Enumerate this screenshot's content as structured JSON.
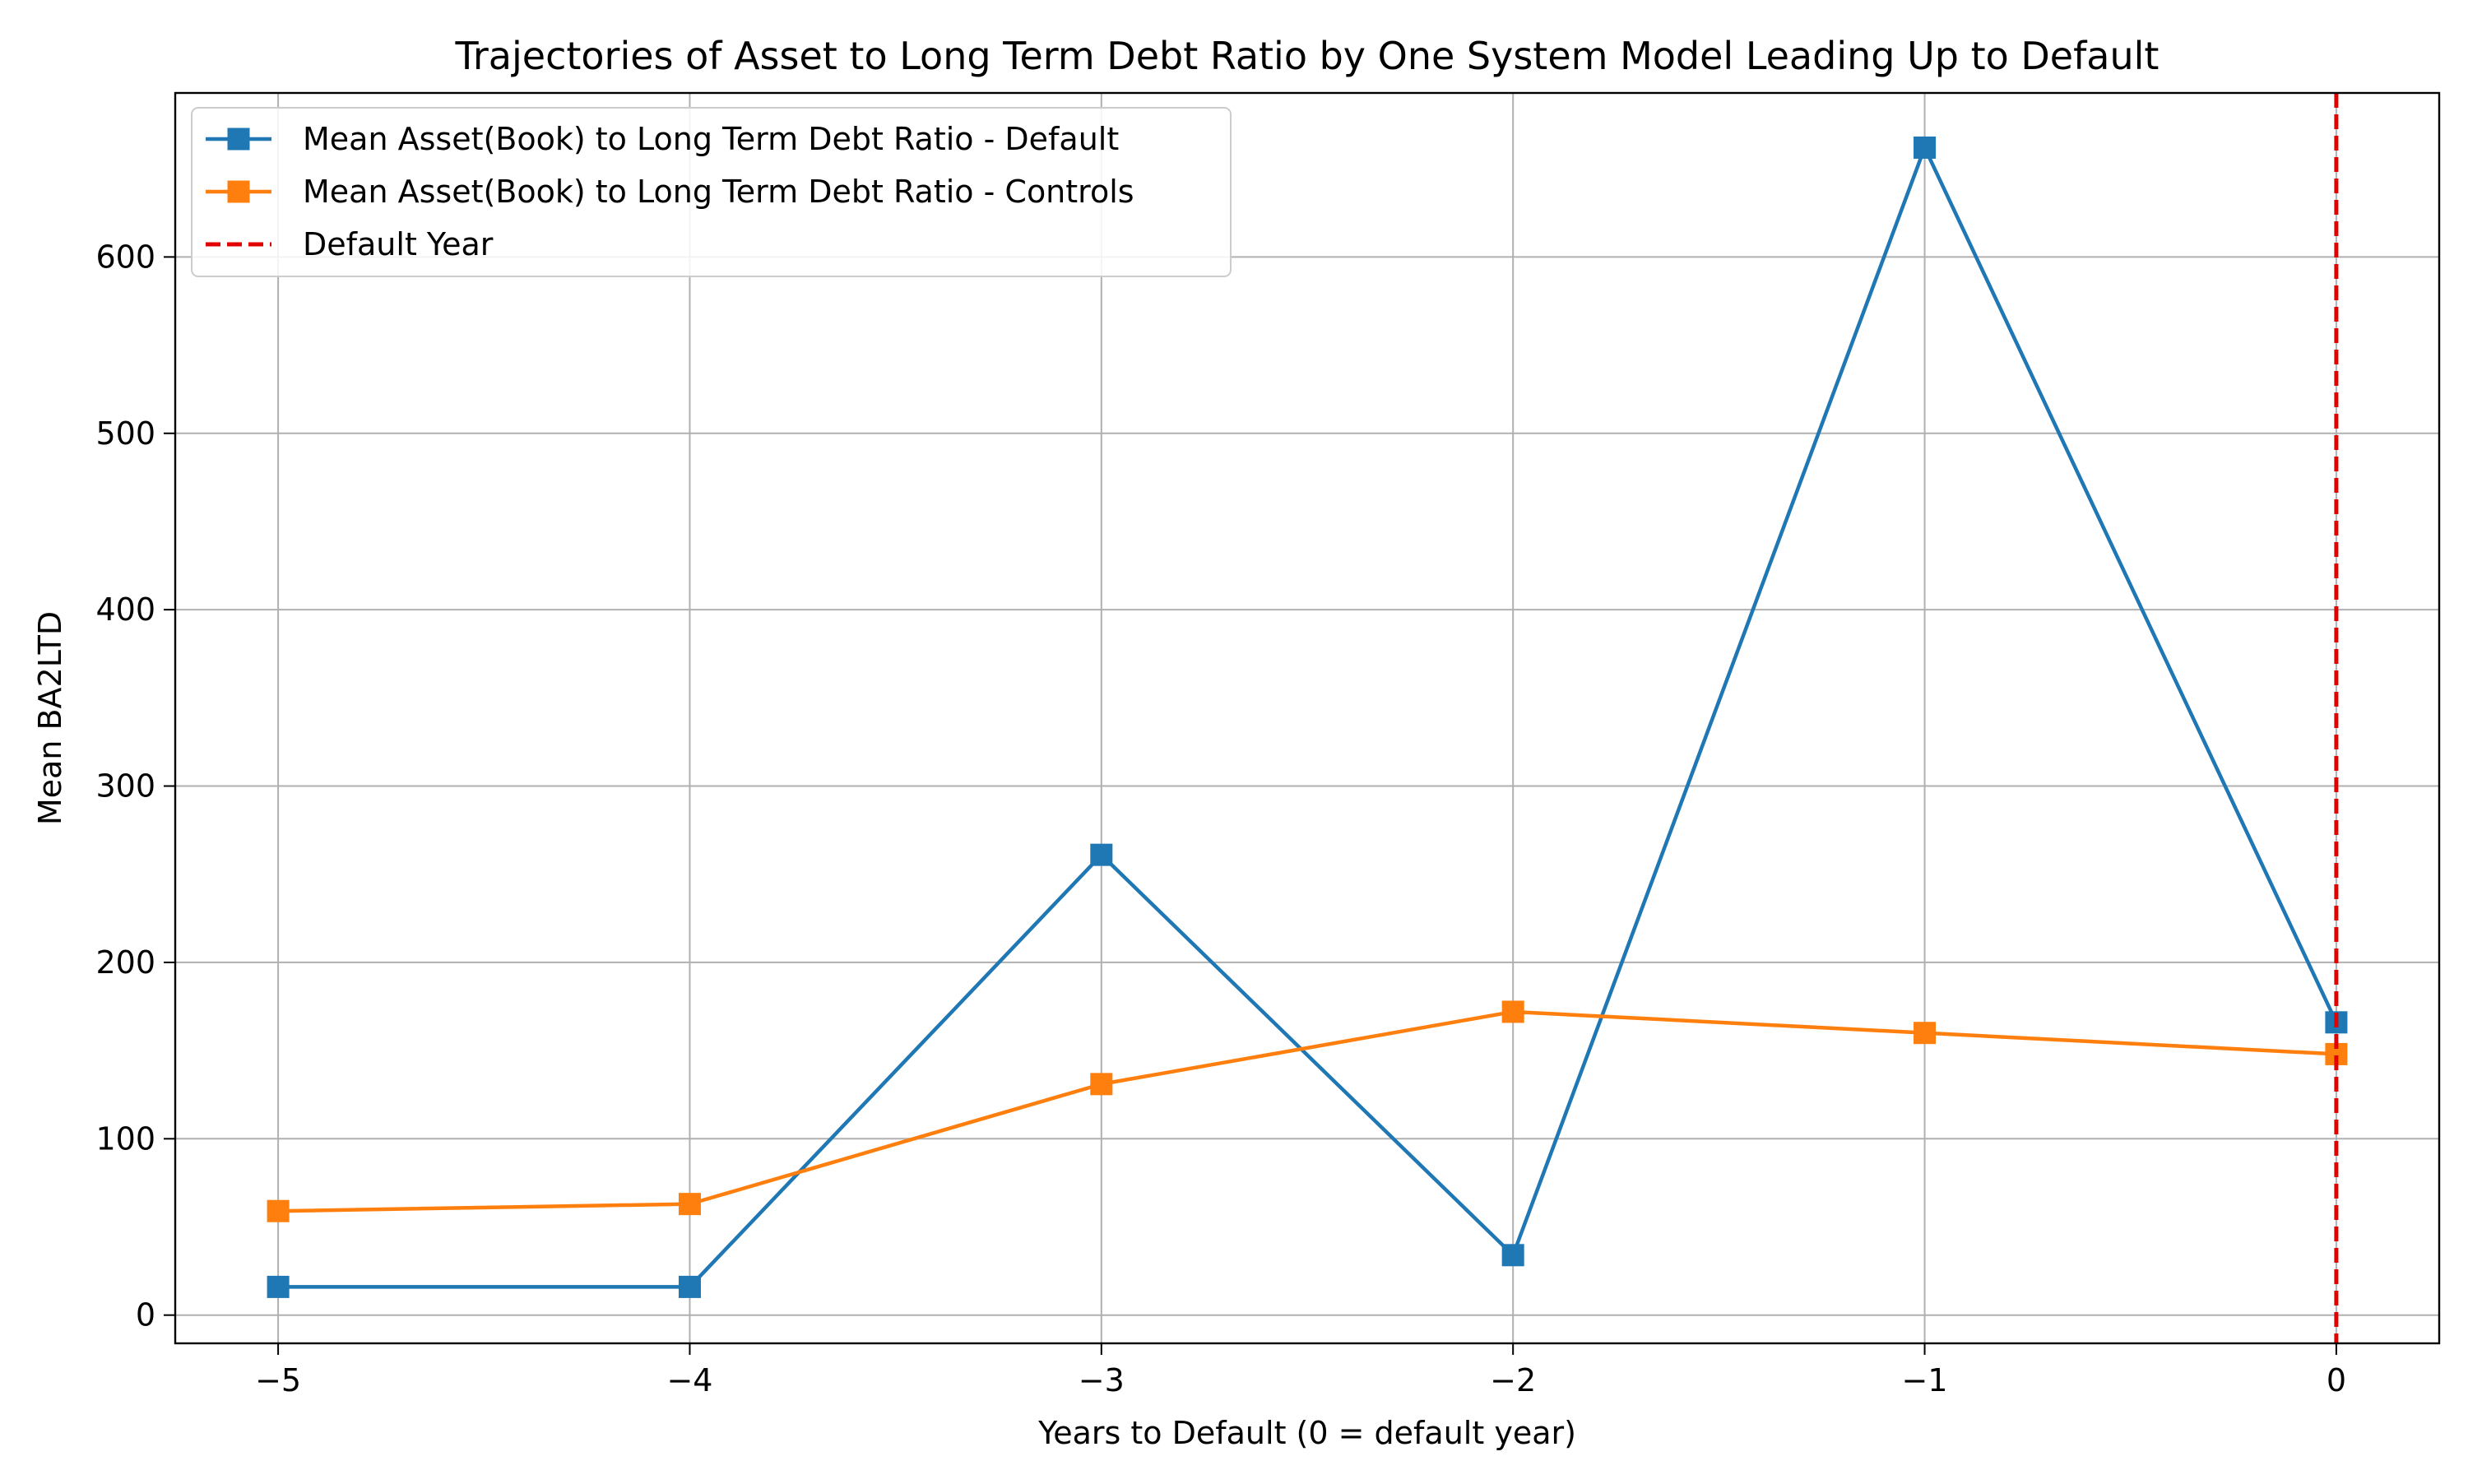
{
  "chart_data": {
    "type": "line",
    "title": "Trajectories of Asset to Long Term Debt Ratio by One System Model Leading Up to Default",
    "xlabel": "Years to Default (0 = default year)",
    "ylabel": "Mean BA2LTD",
    "x": [
      -5,
      -4,
      -3,
      -2,
      -1,
      0
    ],
    "xticks": [
      -5,
      -4,
      -3,
      -2,
      -1,
      0
    ],
    "xtick_labels": [
      "−5",
      "−4",
      "−3",
      "−2",
      "−1",
      "0"
    ],
    "yticks": [
      0,
      100,
      200,
      300,
      400,
      500,
      600
    ],
    "ytick_labels": [
      "0",
      "100",
      "200",
      "300",
      "400",
      "500",
      "600"
    ],
    "xlim": [
      -5.25,
      0.25
    ],
    "ylim": [
      -16,
      693
    ],
    "grid": true,
    "legend_position": "upper-left",
    "series": [
      {
        "name": "Mean Asset(Book) to Long Term Debt Ratio - Default",
        "color": "#1f77b4",
        "marker": "square",
        "values": [
          16,
          16,
          261,
          34,
          662,
          166
        ]
      },
      {
        "name": "Mean Asset(Book) to Long Term Debt Ratio - Controls",
        "color": "#ff7f0e",
        "marker": "square",
        "values": [
          59,
          63,
          131,
          172,
          160,
          148
        ]
      }
    ],
    "vlines": [
      {
        "name": "Default Year",
        "x": 0,
        "color": "#e00000",
        "style": "dashed"
      }
    ]
  }
}
